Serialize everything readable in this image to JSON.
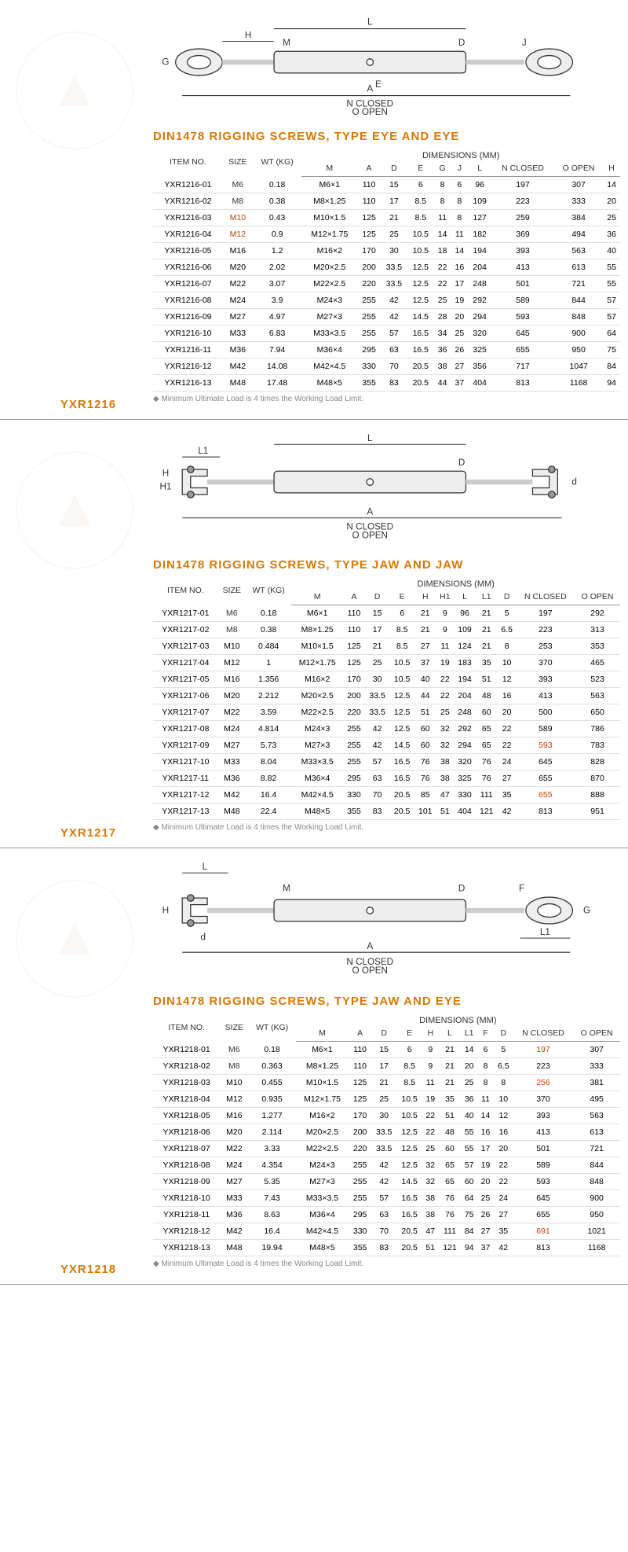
{
  "footnote": "Minimum Ultimate Load is 4 times the Working Load Limit.",
  "sections": [
    {
      "model": "YXR1216",
      "title": "DIN1478 RIGGING SCREWS, TYPE EYE AND EYE",
      "dim_label": "DIMENSIONS (MM)",
      "headers": [
        "ITEM NO.",
        "SIZE",
        "WT (KG)",
        "M",
        "A",
        "D",
        "E",
        "G",
        "J",
        "L",
        "N CLOSED",
        "O OPEN",
        "H"
      ],
      "rows": [
        [
          "YXR1216-01",
          "M6",
          "0.18",
          "M6×1",
          "110",
          "15",
          "6",
          "8",
          "6",
          "96",
          "197",
          "307",
          "14"
        ],
        [
          "YXR1216-02",
          "M8",
          "0.38",
          "M8×1.25",
          "110",
          "17",
          "8.5",
          "8",
          "8",
          "109",
          "223",
          "333",
          "20"
        ],
        [
          "YXR1216-03",
          "M10",
          "0.43",
          "M10×1.5",
          "125",
          "21",
          "8.5",
          "11",
          "8",
          "127",
          "259",
          "384",
          "25"
        ],
        [
          "YXR1216-04",
          "M12",
          "0.9",
          "M12×1.75",
          "125",
          "25",
          "10.5",
          "14",
          "11",
          "182",
          "369",
          "494",
          "36"
        ],
        [
          "YXR1216-05",
          "M16",
          "1.2",
          "M16×2",
          "170",
          "30",
          "10.5",
          "18",
          "14",
          "194",
          "393",
          "563",
          "40"
        ],
        [
          "YXR1216-06",
          "M20",
          "2.02",
          "M20×2.5",
          "200",
          "33.5",
          "12.5",
          "22",
          "16",
          "204",
          "413",
          "613",
          "55"
        ],
        [
          "YXR1216-07",
          "M22",
          "3.07",
          "M22×2.5",
          "220",
          "33.5",
          "12.5",
          "22",
          "17",
          "248",
          "501",
          "721",
          "55"
        ],
        [
          "YXR1216-08",
          "M24",
          "3.9",
          "M24×3",
          "255",
          "42",
          "12.5",
          "25",
          "19",
          "292",
          "589",
          "844",
          "57"
        ],
        [
          "YXR1216-09",
          "M27",
          "4.97",
          "M27×3",
          "255",
          "42",
          "14.5",
          "28",
          "20",
          "294",
          "593",
          "848",
          "57"
        ],
        [
          "YXR1216-10",
          "M33",
          "6.83",
          "M33×3.5",
          "255",
          "57",
          "16.5",
          "34",
          "25",
          "320",
          "645",
          "900",
          "64"
        ],
        [
          "YXR1216-11",
          "M36",
          "7.94",
          "M36×4",
          "295",
          "63",
          "16.5",
          "36",
          "26",
          "325",
          "655",
          "950",
          "75"
        ],
        [
          "YXR1216-12",
          "M42",
          "14.08",
          "M42×4.5",
          "330",
          "70",
          "20.5",
          "38",
          "27",
          "356",
          "717",
          "1047",
          "84"
        ],
        [
          "YXR1216-13",
          "M48",
          "17.48",
          "M48×5",
          "355",
          "83",
          "20.5",
          "44",
          "37",
          "404",
          "813",
          "1168",
          "94"
        ]
      ],
      "hl_rows": [
        2,
        3
      ],
      "hl_col": 1
    },
    {
      "model": "YXR1217",
      "title": "DIN1478 RIGGING SCREWS, TYPE JAW AND JAW",
      "dim_label": "DIMENSIONS (MM)",
      "headers": [
        "ITEM NO.",
        "SIZE",
        "WT (KG)",
        "M",
        "A",
        "D",
        "E",
        "H",
        "H1",
        "L",
        "L1",
        "D",
        "N CLOSED",
        "O OPEN"
      ],
      "rows": [
        [
          "YXR1217-01",
          "M6",
          "0.18",
          "M6×1",
          "110",
          "15",
          "6",
          "21",
          "9",
          "96",
          "21",
          "5",
          "197",
          "292"
        ],
        [
          "YXR1217-02",
          "M8",
          "0.38",
          "M8×1.25",
          "110",
          "17",
          "8.5",
          "21",
          "9",
          "109",
          "21",
          "6.5",
          "223",
          "313"
        ],
        [
          "YXR1217-03",
          "M10",
          "0.484",
          "M10×1.5",
          "125",
          "21",
          "8.5",
          "27",
          "11",
          "124",
          "21",
          "8",
          "253",
          "353"
        ],
        [
          "YXR1217-04",
          "M12",
          "1",
          "M12×1.75",
          "125",
          "25",
          "10.5",
          "37",
          "19",
          "183",
          "35",
          "10",
          "370",
          "465"
        ],
        [
          "YXR1217-05",
          "M16",
          "1.356",
          "M16×2",
          "170",
          "30",
          "10.5",
          "40",
          "22",
          "194",
          "51",
          "12",
          "393",
          "523"
        ],
        [
          "YXR1217-06",
          "M20",
          "2.212",
          "M20×2.5",
          "200",
          "33.5",
          "12.5",
          "44",
          "22",
          "204",
          "48",
          "16",
          "413",
          "563"
        ],
        [
          "YXR1217-07",
          "M22",
          "3.59",
          "M22×2.5",
          "220",
          "33.5",
          "12.5",
          "51",
          "25",
          "248",
          "60",
          "20",
          "500",
          "650"
        ],
        [
          "YXR1217-08",
          "M24",
          "4.814",
          "M24×3",
          "255",
          "42",
          "12.5",
          "60",
          "32",
          "292",
          "65",
          "22",
          "589",
          "786"
        ],
        [
          "YXR1217-09",
          "M27",
          "5.73",
          "M27×3",
          "255",
          "42",
          "14.5",
          "60",
          "32",
          "294",
          "65",
          "22",
          "593",
          "783"
        ],
        [
          "YXR1217-10",
          "M33",
          "8.04",
          "M33×3.5",
          "255",
          "57",
          "16.5",
          "76",
          "38",
          "320",
          "76",
          "24",
          "645",
          "828"
        ],
        [
          "YXR1217-11",
          "M36",
          "8.82",
          "M36×4",
          "295",
          "63",
          "16.5",
          "76",
          "38",
          "325",
          "76",
          "27",
          "655",
          "870"
        ],
        [
          "YXR1217-12",
          "M42",
          "16.4",
          "M42×4.5",
          "330",
          "70",
          "20.5",
          "85",
          "47",
          "330",
          "111",
          "35",
          "655",
          "888"
        ],
        [
          "YXR1217-13",
          "M48",
          "22.4",
          "M48×5",
          "355",
          "83",
          "20.5",
          "101",
          "51",
          "404",
          "121",
          "42",
          "813",
          "951"
        ]
      ],
      "hl_rows": [
        8,
        11
      ],
      "hl_col": 12
    },
    {
      "model": "YXR1218",
      "title": "DIN1478 RIGGING SCREWS, TYPE JAW AND EYE",
      "dim_label": "DIMENSIONS (MM)",
      "headers": [
        "ITEM NO.",
        "SIZE",
        "WT (KG)",
        "M",
        "A",
        "D",
        "E",
        "H",
        "L",
        "L1",
        "F",
        "D",
        "N CLOSED",
        "O OPEN"
      ],
      "rows": [
        [
          "YXR1218-01",
          "M6",
          "0.18",
          "M6×1",
          "110",
          "15",
          "6",
          "9",
          "21",
          "14",
          "6",
          "5",
          "197",
          "307"
        ],
        [
          "YXR1218-02",
          "M8",
          "0.363",
          "M8×1.25",
          "110",
          "17",
          "8.5",
          "9",
          "21",
          "20",
          "8",
          "6.5",
          "223",
          "333"
        ],
        [
          "YXR1218-03",
          "M10",
          "0.455",
          "M10×1.5",
          "125",
          "21",
          "8.5",
          "11",
          "21",
          "25",
          "8",
          "8",
          "256",
          "381"
        ],
        [
          "YXR1218-04",
          "M12",
          "0.935",
          "M12×1.75",
          "125",
          "25",
          "10.5",
          "19",
          "35",
          "36",
          "11",
          "10",
          "370",
          "495"
        ],
        [
          "YXR1218-05",
          "M16",
          "1.277",
          "M16×2",
          "170",
          "30",
          "10.5",
          "22",
          "51",
          "40",
          "14",
          "12",
          "393",
          "563"
        ],
        [
          "YXR1218-06",
          "M20",
          "2.114",
          "M20×2.5",
          "200",
          "33.5",
          "12.5",
          "22",
          "48",
          "55",
          "16",
          "16",
          "413",
          "613"
        ],
        [
          "YXR1218-07",
          "M22",
          "3.33",
          "M22×2.5",
          "220",
          "33.5",
          "12.5",
          "25",
          "60",
          "55",
          "17",
          "20",
          "501",
          "721"
        ],
        [
          "YXR1218-08",
          "M24",
          "4.354",
          "M24×3",
          "255",
          "42",
          "12.5",
          "32",
          "65",
          "57",
          "19",
          "22",
          "589",
          "844"
        ],
        [
          "YXR1218-09",
          "M27",
          "5.35",
          "M27×3",
          "255",
          "42",
          "14.5",
          "32",
          "65",
          "60",
          "20",
          "22",
          "593",
          "848"
        ],
        [
          "YXR1218-10",
          "M33",
          "7.43",
          "M33×3.5",
          "255",
          "57",
          "16.5",
          "38",
          "76",
          "64",
          "25",
          "24",
          "645",
          "900"
        ],
        [
          "YXR1218-11",
          "M36",
          "8.63",
          "M36×4",
          "295",
          "63",
          "16.5",
          "38",
          "76",
          "75",
          "26",
          "27",
          "655",
          "950"
        ],
        [
          "YXR1218-12",
          "M42",
          "16.4",
          "M42×4.5",
          "330",
          "70",
          "20.5",
          "47",
          "111",
          "84",
          "27",
          "35",
          "691",
          "1021"
        ],
        [
          "YXR1218-13",
          "M48",
          "19.94",
          "M48×5",
          "355",
          "83",
          "20.5",
          "51",
          "121",
          "94",
          "37",
          "42",
          "813",
          "1168"
        ]
      ],
      "hl_rows": [
        0,
        2,
        11
      ],
      "hl_col": 12
    }
  ],
  "colors": {
    "accent": "#d97706",
    "hl": "#c04000",
    "border": "#e0e0e0"
  }
}
